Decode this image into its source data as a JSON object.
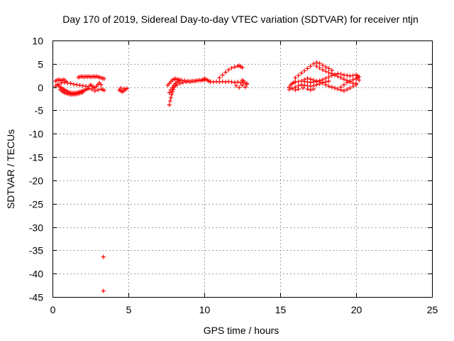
{
  "chart_data": {
    "type": "scatter",
    "title": "Day 170 of 2019, Sidereal Day-to-day VTEC variation (SDTVAR) for receiver ntjn",
    "xlabel": "GPS time / hours",
    "ylabel": "SDTVAR / TECUs",
    "xlim": [
      0,
      25
    ],
    "ylim": [
      -45,
      10
    ],
    "xticks": [
      0,
      5,
      10,
      15,
      20,
      25
    ],
    "yticks": [
      10,
      5,
      0,
      -5,
      -10,
      -15,
      -20,
      -25,
      -30,
      -35,
      -40,
      -45
    ],
    "grid": true,
    "marker": "+",
    "series": [
      {
        "name": "SDTVAR",
        "color": "#ff0000",
        "points": [
          [
            0.2,
            1.3
          ],
          [
            0.3,
            1.5
          ],
          [
            0.4,
            1.6
          ],
          [
            0.5,
            1.5
          ],
          [
            0.6,
            1.4
          ],
          [
            0.7,
            1.6
          ],
          [
            0.8,
            1.5
          ],
          [
            0.9,
            1.2
          ],
          [
            0.3,
            0.5
          ],
          [
            0.4,
            0.3
          ],
          [
            0.5,
            0.0
          ],
          [
            0.6,
            -0.2
          ],
          [
            0.7,
            -0.4
          ],
          [
            0.8,
            -0.6
          ],
          [
            0.9,
            -0.8
          ],
          [
            1.0,
            -1.0
          ],
          [
            1.1,
            -1.1
          ],
          [
            1.2,
            -1.2
          ],
          [
            1.3,
            -1.3
          ],
          [
            1.4,
            -1.2
          ],
          [
            1.5,
            -1.3
          ],
          [
            1.6,
            -1.2
          ],
          [
            1.7,
            -1.1
          ],
          [
            1.8,
            -1.0
          ],
          [
            1.9,
            -0.9
          ],
          [
            2.0,
            -0.8
          ],
          [
            2.1,
            -0.7
          ],
          [
            2.2,
            -0.5
          ],
          [
            2.3,
            -0.4
          ],
          [
            2.4,
            -0.3
          ],
          [
            0.5,
            -0.5
          ],
          [
            0.6,
            -0.8
          ],
          [
            0.7,
            -1.0
          ],
          [
            0.8,
            -1.2
          ],
          [
            0.9,
            -1.3
          ],
          [
            1.0,
            -1.4
          ],
          [
            1.1,
            -1.5
          ],
          [
            1.2,
            -1.6
          ],
          [
            1.3,
            -1.5
          ],
          [
            1.4,
            -1.6
          ],
          [
            1.5,
            -1.5
          ],
          [
            1.6,
            -1.5
          ],
          [
            1.7,
            -1.4
          ],
          [
            1.8,
            -1.3
          ],
          [
            1.9,
            -1.2
          ],
          [
            2.0,
            -1.1
          ],
          [
            0.2,
            0.2
          ],
          [
            0.4,
            0.6
          ],
          [
            0.6,
            0.9
          ],
          [
            0.8,
            1.0
          ],
          [
            1.0,
            0.9
          ],
          [
            1.2,
            0.8
          ],
          [
            1.4,
            0.6
          ],
          [
            1.6,
            0.5
          ],
          [
            1.8,
            0.4
          ],
          [
            2.0,
            0.3
          ],
          [
            2.2,
            0.2
          ],
          [
            2.4,
            0.1
          ],
          [
            2.5,
            0.5
          ],
          [
            2.6,
            0.3
          ],
          [
            2.7,
            0.0
          ],
          [
            2.8,
            -0.2
          ],
          [
            2.9,
            0.2
          ],
          [
            3.0,
            0.6
          ],
          [
            3.1,
            0.9
          ],
          [
            3.2,
            0.5
          ],
          [
            2.6,
            -0.5
          ],
          [
            2.8,
            -0.8
          ],
          [
            3.0,
            -0.6
          ],
          [
            3.2,
            -0.4
          ],
          [
            3.3,
            -0.5
          ],
          [
            3.4,
            -0.7
          ],
          [
            1.7,
            2.1
          ],
          [
            1.8,
            2.2
          ],
          [
            1.9,
            2.3
          ],
          [
            2.0,
            2.2
          ],
          [
            2.1,
            2.2
          ],
          [
            2.2,
            2.3
          ],
          [
            2.3,
            2.2
          ],
          [
            2.4,
            2.3
          ],
          [
            2.5,
            2.2
          ],
          [
            2.6,
            2.2
          ],
          [
            2.7,
            2.3
          ],
          [
            2.8,
            2.2
          ],
          [
            2.9,
            2.3
          ],
          [
            3.0,
            2.2
          ],
          [
            3.1,
            2.1
          ],
          [
            3.2,
            2.0
          ],
          [
            3.3,
            1.9
          ],
          [
            3.4,
            1.8
          ],
          [
            3.35,
            -36.4
          ],
          [
            3.35,
            -43.7
          ],
          [
            4.4,
            -0.6
          ],
          [
            4.5,
            -0.8
          ],
          [
            4.6,
            -1.0
          ],
          [
            4.7,
            -0.8
          ],
          [
            4.8,
            -0.5
          ],
          [
            4.9,
            -0.3
          ],
          [
            4.5,
            -0.2
          ],
          [
            4.7,
            -0.4
          ],
          [
            7.7,
            -3.8
          ],
          [
            7.75,
            -3.0
          ],
          [
            7.8,
            -2.3
          ],
          [
            7.85,
            -1.6
          ],
          [
            7.9,
            -1.0
          ],
          [
            7.95,
            -0.5
          ],
          [
            8.0,
            0.0
          ],
          [
            8.1,
            0.3
          ],
          [
            8.2,
            0.5
          ],
          [
            8.4,
            0.8
          ],
          [
            8.6,
            1.0
          ],
          [
            8.8,
            1.1
          ],
          [
            9.0,
            1.2
          ],
          [
            9.2,
            1.3
          ],
          [
            9.4,
            1.3
          ],
          [
            9.6,
            1.4
          ],
          [
            9.8,
            1.4
          ],
          [
            10.0,
            1.5
          ],
          [
            7.7,
            -1.2
          ],
          [
            7.8,
            -0.6
          ],
          [
            7.9,
            -0.1
          ],
          [
            8.0,
            0.4
          ],
          [
            8.1,
            0.8
          ],
          [
            8.2,
            1.1
          ],
          [
            8.3,
            1.3
          ],
          [
            8.4,
            1.5
          ],
          [
            7.6,
            0.4
          ],
          [
            7.7,
            0.8
          ],
          [
            7.8,
            1.2
          ],
          [
            7.9,
            1.5
          ],
          [
            8.0,
            1.7
          ],
          [
            8.1,
            1.8
          ],
          [
            8.2,
            1.7
          ],
          [
            8.3,
            1.6
          ],
          [
            8.5,
            1.5
          ],
          [
            8.7,
            1.4
          ],
          [
            8.9,
            1.3
          ],
          [
            9.1,
            1.2
          ],
          [
            9.3,
            1.3
          ],
          [
            9.5,
            1.4
          ],
          [
            9.7,
            1.5
          ],
          [
            9.9,
            1.6
          ],
          [
            10.0,
            1.8
          ],
          [
            10.1,
            1.7
          ],
          [
            10.2,
            1.5
          ],
          [
            10.3,
            1.3
          ],
          [
            10.4,
            1.2
          ],
          [
            10.4,
            1.1
          ],
          [
            10.6,
            1.1
          ],
          [
            10.8,
            1.2
          ],
          [
            11.0,
            1.1
          ],
          [
            11.2,
            1.2
          ],
          [
            11.4,
            1.1
          ],
          [
            11.6,
            1.2
          ],
          [
            11.8,
            1.1
          ],
          [
            12.0,
            1.0
          ],
          [
            12.2,
            1.1
          ],
          [
            12.4,
            0.9
          ],
          [
            12.6,
            1.0
          ],
          [
            12.8,
            0.8
          ],
          [
            11.0,
            2.0
          ],
          [
            11.2,
            2.6
          ],
          [
            11.4,
            3.2
          ],
          [
            11.6,
            3.7
          ],
          [
            11.8,
            4.1
          ],
          [
            12.0,
            4.3
          ],
          [
            12.2,
            4.5
          ],
          [
            12.3,
            4.6
          ],
          [
            12.4,
            4.4
          ],
          [
            12.5,
            4.2
          ],
          [
            12.1,
            0.3
          ],
          [
            12.3,
            -0.1
          ],
          [
            12.5,
            0.4
          ],
          [
            12.7,
            0.0
          ],
          [
            12.8,
            0.6
          ],
          [
            12.6,
            1.3
          ],
          [
            12.5,
            1.5
          ],
          [
            15.6,
            0.0
          ],
          [
            15.7,
            0.5
          ],
          [
            15.8,
            0.8
          ],
          [
            15.9,
            1.0
          ],
          [
            16.0,
            1.1
          ],
          [
            16.2,
            1.2
          ],
          [
            16.4,
            1.3
          ],
          [
            16.6,
            1.2
          ],
          [
            16.8,
            1.1
          ],
          [
            17.0,
            1.0
          ],
          [
            17.2,
            1.1
          ],
          [
            17.4,
            1.2
          ],
          [
            17.6,
            1.1
          ],
          [
            17.8,
            1.0
          ],
          [
            15.6,
            -0.5
          ],
          [
            15.8,
            -0.3
          ],
          [
            16.0,
            0.0
          ],
          [
            16.2,
            0.3
          ],
          [
            16.4,
            0.5
          ],
          [
            16.6,
            0.4
          ],
          [
            16.8,
            0.3
          ],
          [
            17.0,
            0.2
          ],
          [
            17.2,
            0.3
          ],
          [
            17.4,
            0.5
          ],
          [
            17.6,
            0.7
          ],
          [
            17.8,
            0.9
          ],
          [
            18.0,
            1.1
          ],
          [
            18.2,
            1.3
          ],
          [
            16.0,
            2.0
          ],
          [
            16.2,
            2.5
          ],
          [
            16.4,
            3.0
          ],
          [
            16.6,
            3.5
          ],
          [
            16.8,
            4.0
          ],
          [
            17.0,
            4.5
          ],
          [
            17.2,
            5.0
          ],
          [
            17.4,
            5.3
          ],
          [
            17.6,
            5.1
          ],
          [
            17.8,
            4.7
          ],
          [
            18.0,
            4.3
          ],
          [
            18.2,
            4.0
          ],
          [
            18.4,
            3.6
          ],
          [
            16.6,
            1.6
          ],
          [
            16.8,
            1.9
          ],
          [
            17.0,
            1.7
          ],
          [
            17.2,
            1.5
          ],
          [
            17.4,
            1.3
          ],
          [
            17.6,
            1.4
          ],
          [
            17.8,
            1.6
          ],
          [
            18.0,
            1.9
          ],
          [
            18.2,
            2.2
          ],
          [
            18.4,
            2.5
          ],
          [
            18.6,
            2.7
          ],
          [
            18.8,
            2.9
          ],
          [
            19.0,
            2.8
          ],
          [
            19.2,
            2.6
          ],
          [
            19.4,
            2.5
          ],
          [
            19.6,
            2.4
          ],
          [
            19.8,
            2.5
          ],
          [
            20.0,
            2.6
          ],
          [
            20.1,
            2.4
          ],
          [
            17.4,
            4.5
          ],
          [
            17.6,
            4.1
          ],
          [
            17.8,
            3.7
          ],
          [
            18.0,
            3.4
          ],
          [
            18.2,
            3.1
          ],
          [
            18.4,
            2.9
          ],
          [
            18.6,
            2.6
          ],
          [
            18.8,
            2.3
          ],
          [
            19.0,
            2.0
          ],
          [
            19.2,
            1.7
          ],
          [
            19.4,
            1.4
          ],
          [
            19.6,
            1.1
          ],
          [
            19.8,
            0.8
          ],
          [
            20.0,
            0.5
          ],
          [
            18.0,
            0.5
          ],
          [
            18.2,
            0.2
          ],
          [
            18.4,
            0.0
          ],
          [
            18.6,
            -0.2
          ],
          [
            18.8,
            -0.4
          ],
          [
            19.0,
            -0.6
          ],
          [
            19.2,
            -0.8
          ],
          [
            19.4,
            -0.5
          ],
          [
            19.6,
            -0.2
          ],
          [
            19.8,
            0.2
          ],
          [
            20.0,
            0.8
          ],
          [
            20.2,
            1.5
          ],
          [
            20.2,
            2.2
          ],
          [
            19.0,
            0.0
          ],
          [
            19.2,
            0.5
          ],
          [
            19.4,
            1.0
          ],
          [
            19.6,
            1.3
          ],
          [
            19.8,
            1.6
          ],
          [
            20.0,
            1.8
          ],
          [
            20.1,
            2.0
          ],
          [
            17.2,
            -0.4
          ],
          [
            17.0,
            -0.6
          ],
          [
            16.8,
            -0.4
          ],
          [
            16.5,
            -0.2
          ],
          [
            16.2,
            -0.4
          ],
          [
            16.0,
            -0.6
          ]
        ]
      }
    ]
  }
}
